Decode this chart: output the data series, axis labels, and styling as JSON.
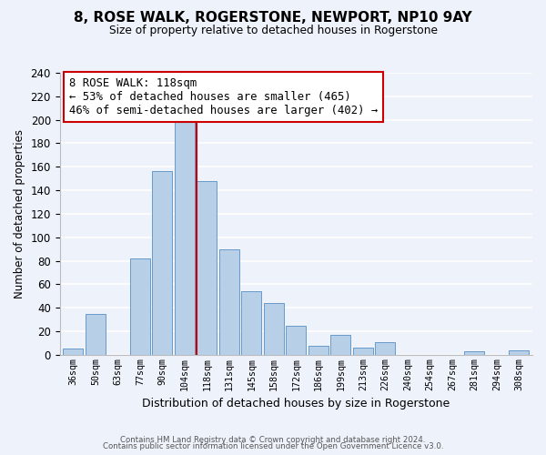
{
  "title": "8, ROSE WALK, ROGERSTONE, NEWPORT, NP10 9AY",
  "subtitle": "Size of property relative to detached houses in Rogerstone",
  "xlabel": "Distribution of detached houses by size in Rogerstone",
  "ylabel": "Number of detached properties",
  "bin_labels": [
    "36sqm",
    "50sqm",
    "63sqm",
    "77sqm",
    "90sqm",
    "104sqm",
    "118sqm",
    "131sqm",
    "145sqm",
    "158sqm",
    "172sqm",
    "186sqm",
    "199sqm",
    "213sqm",
    "226sqm",
    "240sqm",
    "254sqm",
    "267sqm",
    "281sqm",
    "294sqm",
    "308sqm"
  ],
  "bar_values": [
    5,
    35,
    0,
    82,
    156,
    202,
    148,
    90,
    54,
    44,
    25,
    8,
    17,
    6,
    11,
    0,
    0,
    0,
    3,
    0,
    4
  ],
  "bar_color": "#b8cfe8",
  "bar_edge_color": "#6699cc",
  "highlight_line_color": "#cc0000",
  "highlight_line_index": 6,
  "ylim": [
    0,
    240
  ],
  "yticks": [
    0,
    20,
    40,
    60,
    80,
    100,
    120,
    140,
    160,
    180,
    200,
    220,
    240
  ],
  "annotation_title": "8 ROSE WALK: 118sqm",
  "annotation_line1": "← 53% of detached houses are smaller (465)",
  "annotation_line2": "46% of semi-detached houses are larger (402) →",
  "annotation_box_color": "#ffffff",
  "annotation_box_edge": "#cc0000",
  "footer1": "Contains HM Land Registry data © Crown copyright and database right 2024.",
  "footer2": "Contains public sector information licensed under the Open Government Licence v3.0.",
  "background_color": "#eef2fb"
}
